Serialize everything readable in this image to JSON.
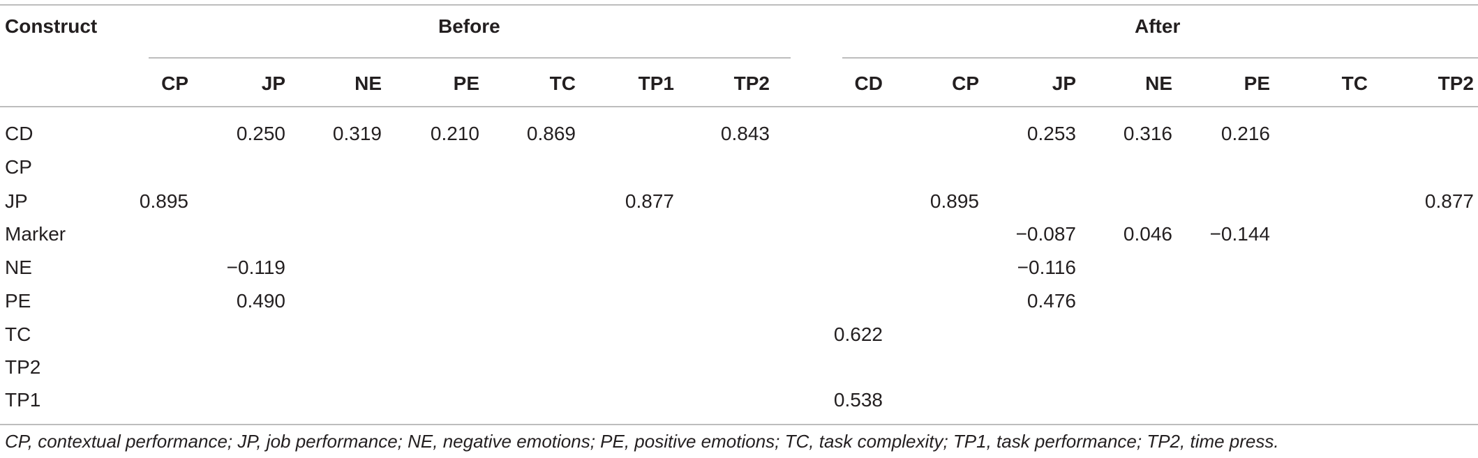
{
  "table": {
    "construct_header": "Construct",
    "groups": [
      "Before",
      "After"
    ],
    "columns": [
      "CP",
      "JP",
      "NE",
      "PE",
      "TC",
      "TP1",
      "TP2",
      "CD",
      "CP",
      "JP",
      "NE",
      "PE",
      "TC",
      "TP2"
    ],
    "rows": [
      {
        "label": "CD",
        "cells": [
          "",
          "0.250",
          "0.319",
          "0.210",
          "0.869",
          "",
          "0.843",
          "",
          "",
          "0.253",
          "0.316",
          "0.216",
          "",
          ""
        ]
      },
      {
        "label": "CP",
        "cells": [
          "",
          "",
          "",
          "",
          "",
          "",
          "",
          "",
          "",
          "",
          "",
          "",
          "",
          ""
        ]
      },
      {
        "label": "JP",
        "cells": [
          "0.895",
          "",
          "",
          "",
          "",
          "0.877",
          "",
          "",
          "0.895",
          "",
          "",
          "",
          "",
          "0.877"
        ]
      },
      {
        "label": "Marker",
        "cells": [
          "",
          "",
          "",
          "",
          "",
          "",
          "",
          "",
          "",
          "−0.087",
          "0.046",
          "−0.144",
          "",
          ""
        ]
      },
      {
        "label": "NE",
        "cells": [
          "",
          "−0.119",
          "",
          "",
          "",
          "",
          "",
          "",
          "",
          "−0.116",
          "",
          "",
          "",
          ""
        ]
      },
      {
        "label": "PE",
        "cells": [
          "",
          "0.490",
          "",
          "",
          "",
          "",
          "",
          "",
          "",
          "0.476",
          "",
          "",
          "",
          ""
        ]
      },
      {
        "label": "TC",
        "cells": [
          "",
          "",
          "",
          "",
          "",
          "",
          "",
          "0.622",
          "",
          "",
          "",
          "",
          "",
          ""
        ]
      },
      {
        "label": "TP2",
        "cells": [
          "",
          "",
          "",
          "",
          "",
          "",
          "",
          "",
          "",
          "",
          "",
          "",
          "",
          ""
        ]
      },
      {
        "label": "TP1",
        "cells": [
          "",
          "",
          "",
          "",
          "",
          "",
          "",
          "0.538",
          "",
          "",
          "",
          "",
          "",
          ""
        ]
      }
    ],
    "footnote": "CP, contextual performance; JP, job performance; NE, negative emotions; PE, positive emotions; TC, task complexity; TP1, task performance; TP2, time press."
  }
}
